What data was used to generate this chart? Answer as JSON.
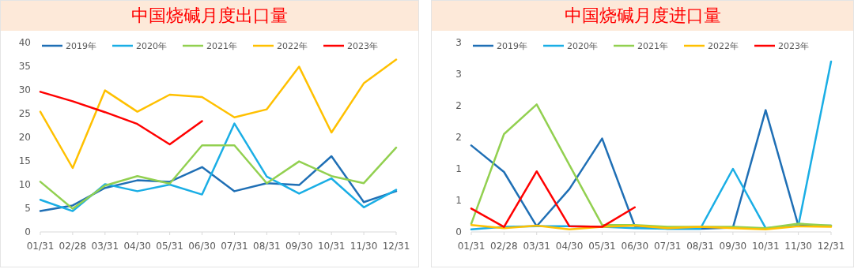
{
  "chart_data": [
    {
      "type": "line",
      "title": "中国烧碱月度出口量",
      "categories": [
        "01/31",
        "02/28",
        "03/31",
        "04/30",
        "05/31",
        "06/30",
        "07/31",
        "08/31",
        "09/30",
        "10/31",
        "11/30",
        "12/31"
      ],
      "ylim": [
        0,
        40
      ],
      "yticks": [
        0,
        5,
        10,
        15,
        20,
        25,
        30,
        35,
        40
      ],
      "legend": "top",
      "series": [
        {
          "name": "2019年",
          "color": "#1f6fb5",
          "values": [
            4.4,
            5.6,
            9.3,
            10.9,
            10.6,
            13.7,
            8.6,
            10.3,
            9.9,
            16.0,
            6.3,
            8.6
          ]
        },
        {
          "name": "2020年",
          "color": "#1aaee5",
          "values": [
            6.8,
            4.4,
            10.1,
            8.6,
            10.0,
            7.9,
            22.9,
            11.7,
            8.1,
            11.3,
            5.2,
            8.9
          ]
        },
        {
          "name": "2021年",
          "color": "#92d050",
          "values": [
            10.6,
            4.9,
            9.8,
            11.8,
            10.2,
            18.3,
            18.3,
            10.3,
            14.9,
            11.8,
            10.3,
            17.8
          ]
        },
        {
          "name": "2022年",
          "color": "#ffc000",
          "values": [
            25.4,
            13.5,
            29.9,
            25.4,
            29.0,
            28.5,
            24.2,
            25.9,
            34.9,
            21.0,
            31.4,
            36.4
          ]
        },
        {
          "name": "2023年",
          "color": "#ff0000",
          "values": [
            29.6,
            27.6,
            25.3,
            22.8,
            18.5,
            23.4,
            null,
            null,
            null,
            null,
            null,
            null
          ]
        }
      ]
    },
    {
      "type": "line",
      "title": "中国烧碱月度进口量",
      "categories": [
        "01/31",
        "02/28",
        "03/31",
        "04/30",
        "05/31",
        "06/30",
        "07/31",
        "08/31",
        "09/30",
        "10/31",
        "11/30",
        "12/31"
      ],
      "ylim": [
        0,
        3
      ],
      "yticks": [
        0,
        {
          "value": 0.5,
          "label": "1"
        },
        1,
        {
          "value": 1.5,
          "label": "2"
        },
        2,
        {
          "value": 2.5,
          "label": "3"
        },
        3
      ],
      "legend": "top",
      "series": [
        {
          "name": "2019年",
          "color": "#1f6fb5",
          "values": [
            1.37,
            0.95,
            0.09,
            0.68,
            1.48,
            0.09,
            0.05,
            0.05,
            0.07,
            1.93,
            0.1,
            0.1
          ]
        },
        {
          "name": "2020年",
          "color": "#1aaee5",
          "values": [
            0.04,
            0.08,
            0.09,
            0.09,
            0.08,
            0.06,
            0.05,
            0.05,
            1.0,
            0.06,
            0.1,
            2.7
          ]
        },
        {
          "name": "2021年",
          "color": "#92d050",
          "values": [
            0.13,
            1.55,
            2.02,
            1.06,
            0.11,
            0.11,
            0.08,
            0.08,
            0.08,
            0.06,
            0.13,
            0.1
          ]
        },
        {
          "name": "2022年",
          "color": "#ffc000",
          "values": [
            0.11,
            0.06,
            0.1,
            0.04,
            0.08,
            0.1,
            0.06,
            0.08,
            0.06,
            0.04,
            0.09,
            0.08
          ]
        },
        {
          "name": "2023年",
          "color": "#ff0000",
          "values": [
            0.37,
            0.08,
            0.96,
            0.09,
            0.08,
            0.39,
            null,
            null,
            null,
            null,
            null,
            null
          ]
        }
      ]
    }
  ]
}
